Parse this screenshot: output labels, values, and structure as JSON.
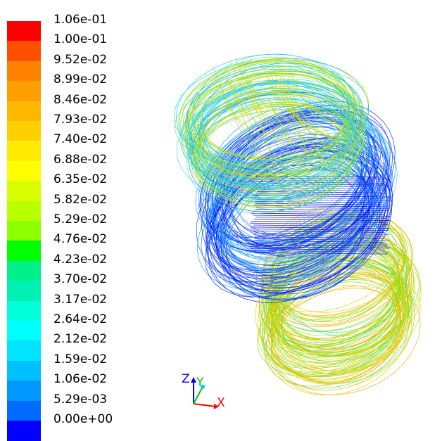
{
  "colorbar": {
    "labels": [
      "1.06e-01",
      "1.00e-01",
      "9.52e-02",
      "8.99e-02",
      "8.46e-02",
      "7.93e-02",
      "7.40e-02",
      "6.88e-02",
      "6.35e-02",
      "5.82e-02",
      "5.29e-02",
      "4.76e-02",
      "4.23e-02",
      "3.70e-02",
      "3.17e-02",
      "2.64e-02",
      "2.12e-02",
      "1.59e-02",
      "1.06e-02",
      "5.29e-03",
      "0.00e+00"
    ],
    "colors": [
      "#ff0000",
      "#ff5000",
      "#ff8200",
      "#ffa000",
      "#ffb800",
      "#ffd000",
      "#ffea00",
      "#ffff00",
      "#d8ff00",
      "#b8ff00",
      "#8cff00",
      "#00ff00",
      "#00f08a",
      "#00f0b4",
      "#00ffd8",
      "#00ffff",
      "#00e4ff",
      "#00c0ff",
      "#0098ff",
      "#006cff",
      "#0000ff"
    ]
  },
  "axes": {
    "z_label": "Z",
    "y_label": "Y",
    "x_label": "X",
    "z_color": "#0000ff",
    "y_color": "#00c800",
    "x_color": "#ff0000"
  },
  "streamlines": {
    "top_colors": [
      "#00a0ff",
      "#20c0ff",
      "#00e0e0",
      "#40d0ff",
      "#80e040",
      "#c0e000",
      "#e0e000"
    ],
    "middle_colors": [
      "#0000ff",
      "#0020ff",
      "#0040ff",
      "#3060ff",
      "#00a0ff",
      "#60c0ff"
    ],
    "lower_colors": [
      "#80e000",
      "#c0e000",
      "#e0d000",
      "#f0c000",
      "#f0a800",
      "#a0f000",
      "#40e080"
    ]
  }
}
